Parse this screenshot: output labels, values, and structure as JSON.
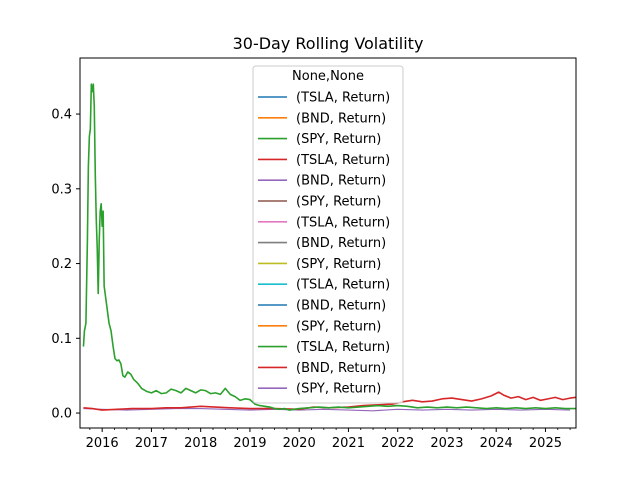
{
  "chart_data": {
    "type": "line",
    "title": "30-Day Rolling Volatility",
    "xlabel": "",
    "ylabel": "",
    "xlim": [
      2015.55,
      2025.62
    ],
    "ylim": [
      -0.02,
      0.475
    ],
    "xticks": [
      2016,
      2017,
      2018,
      2019,
      2020,
      2021,
      2022,
      2023,
      2024,
      2025
    ],
    "yticks": [
      0.0,
      0.1,
      0.2,
      0.3,
      0.4
    ],
    "ytick_labels": [
      "0.0",
      "0.1",
      "0.2",
      "0.3",
      "0.4"
    ],
    "grid": false,
    "legend": {
      "title": "None,None",
      "placement": "upper center",
      "entries": [
        {
          "label": "(TSLA, Return)",
          "color": "#1f77b4"
        },
        {
          "label": "(BND, Return)",
          "color": "#ff7f0e"
        },
        {
          "label": "(SPY, Return)",
          "color": "#2ca02c"
        },
        {
          "label": "(TSLA, Return)",
          "color": "#d62728"
        },
        {
          "label": "(BND, Return)",
          "color": "#9467bd"
        },
        {
          "label": "(SPY, Return)",
          "color": "#8c564b"
        },
        {
          "label": "(TSLA, Return)",
          "color": "#e377c2"
        },
        {
          "label": "(BND, Return)",
          "color": "#7f7f7f"
        },
        {
          "label": "(SPY, Return)",
          "color": "#bcbd22"
        },
        {
          "label": "(TSLA, Return)",
          "color": "#17becf"
        },
        {
          "label": "(BND, Return)",
          "color": "#1f77b4"
        },
        {
          "label": "(SPY, Return)",
          "color": "#ff7f0e"
        },
        {
          "label": "(TSLA, Return)",
          "color": "#2ca02c"
        },
        {
          "label": "(BND, Return)",
          "color": "#d62728"
        },
        {
          "label": "(SPY, Return)",
          "color": "#9467bd"
        }
      ]
    },
    "series": [
      {
        "color": "#9467bd",
        "width": 1.2,
        "points": [
          [
            2015.62,
            0.006
          ],
          [
            2016.0,
            0.005
          ],
          [
            2016.5,
            0.004
          ],
          [
            2017.0,
            0.005
          ],
          [
            2017.5,
            0.006
          ],
          [
            2018.0,
            0.006
          ],
          [
            2018.5,
            0.005
          ],
          [
            2019.0,
            0.004
          ],
          [
            2019.5,
            0.005
          ],
          [
            2020.0,
            0.004
          ],
          [
            2020.5,
            0.005
          ],
          [
            2021.0,
            0.004
          ],
          [
            2021.5,
            0.003
          ],
          [
            2022.0,
            0.005
          ],
          [
            2022.5,
            0.004
          ],
          [
            2023.0,
            0.005
          ],
          [
            2023.5,
            0.004
          ],
          [
            2024.0,
            0.005
          ],
          [
            2024.5,
            0.004
          ],
          [
            2025.0,
            0.005
          ],
          [
            2025.5,
            0.004
          ]
        ]
      },
      {
        "color": "#d62728",
        "width": 1.6,
        "points": [
          [
            2015.62,
            0.007
          ],
          [
            2015.8,
            0.006
          ],
          [
            2016.0,
            0.004
          ],
          [
            2016.3,
            0.005
          ],
          [
            2016.6,
            0.006
          ],
          [
            2017.0,
            0.006
          ],
          [
            2017.3,
            0.007
          ],
          [
            2017.6,
            0.007
          ],
          [
            2018.0,
            0.009
          ],
          [
            2018.3,
            0.008
          ],
          [
            2018.6,
            0.007
          ],
          [
            2019.0,
            0.006
          ],
          [
            2019.5,
            0.006
          ],
          [
            2020.0,
            0.005
          ],
          [
            2020.3,
            0.008
          ],
          [
            2020.6,
            0.007
          ],
          [
            2021.0,
            0.008
          ],
          [
            2021.3,
            0.01
          ],
          [
            2021.6,
            0.011
          ],
          [
            2021.9,
            0.012
          ],
          [
            2022.1,
            0.015
          ],
          [
            2022.3,
            0.017
          ],
          [
            2022.5,
            0.015
          ],
          [
            2022.7,
            0.016
          ],
          [
            2022.9,
            0.019
          ],
          [
            2023.1,
            0.02
          ],
          [
            2023.3,
            0.018
          ],
          [
            2023.5,
            0.016
          ],
          [
            2023.7,
            0.019
          ],
          [
            2023.9,
            0.023
          ],
          [
            2024.05,
            0.028
          ],
          [
            2024.15,
            0.024
          ],
          [
            2024.3,
            0.02
          ],
          [
            2024.45,
            0.022
          ],
          [
            2024.6,
            0.018
          ],
          [
            2024.75,
            0.021
          ],
          [
            2024.9,
            0.017
          ],
          [
            2025.05,
            0.019
          ],
          [
            2025.2,
            0.021
          ],
          [
            2025.35,
            0.018
          ],
          [
            2025.5,
            0.02
          ],
          [
            2025.62,
            0.021
          ]
        ]
      },
      {
        "color": "#2ca02c",
        "width": 1.6,
        "points": [
          [
            2015.62,
            0.089
          ],
          [
            2015.64,
            0.11
          ],
          [
            2015.67,
            0.12
          ],
          [
            2015.7,
            0.23
          ],
          [
            2015.72,
            0.33
          ],
          [
            2015.74,
            0.37
          ],
          [
            2015.76,
            0.38
          ],
          [
            2015.78,
            0.44
          ],
          [
            2015.8,
            0.43
          ],
          [
            2015.82,
            0.44
          ],
          [
            2015.84,
            0.41
          ],
          [
            2015.86,
            0.32
          ],
          [
            2015.88,
            0.26
          ],
          [
            2015.9,
            0.22
          ],
          [
            2015.92,
            0.16
          ],
          [
            2015.94,
            0.23
          ],
          [
            2015.96,
            0.27
          ],
          [
            2015.98,
            0.28
          ],
          [
            2016.0,
            0.25
          ],
          [
            2016.02,
            0.27
          ],
          [
            2016.04,
            0.17
          ],
          [
            2016.06,
            0.16
          ],
          [
            2016.1,
            0.14
          ],
          [
            2016.14,
            0.12
          ],
          [
            2016.18,
            0.11
          ],
          [
            2016.22,
            0.09
          ],
          [
            2016.26,
            0.073
          ],
          [
            2016.3,
            0.07
          ],
          [
            2016.34,
            0.071
          ],
          [
            2016.38,
            0.066
          ],
          [
            2016.42,
            0.05
          ],
          [
            2016.46,
            0.048
          ],
          [
            2016.52,
            0.055
          ],
          [
            2016.58,
            0.052
          ],
          [
            2016.64,
            0.045
          ],
          [
            2016.72,
            0.04
          ],
          [
            2016.8,
            0.033
          ],
          [
            2016.9,
            0.029
          ],
          [
            2017.0,
            0.027
          ],
          [
            2017.1,
            0.03
          ],
          [
            2017.2,
            0.026
          ],
          [
            2017.3,
            0.027
          ],
          [
            2017.4,
            0.032
          ],
          [
            2017.5,
            0.03
          ],
          [
            2017.6,
            0.027
          ],
          [
            2017.7,
            0.033
          ],
          [
            2017.8,
            0.03
          ],
          [
            2017.9,
            0.027
          ],
          [
            2018.0,
            0.031
          ],
          [
            2018.1,
            0.03
          ],
          [
            2018.2,
            0.026
          ],
          [
            2018.3,
            0.027
          ],
          [
            2018.4,
            0.025
          ],
          [
            2018.5,
            0.033
          ],
          [
            2018.6,
            0.025
          ],
          [
            2018.7,
            0.022
          ],
          [
            2018.8,
            0.017
          ],
          [
            2018.9,
            0.019
          ],
          [
            2019.0,
            0.018
          ],
          [
            2019.1,
            0.012
          ],
          [
            2019.2,
            0.01
          ],
          [
            2019.3,
            0.009
          ],
          [
            2019.4,
            0.008
          ],
          [
            2019.5,
            0.006
          ],
          [
            2019.6,
            0.005
          ],
          [
            2019.7,
            0.006
          ],
          [
            2019.8,
            0.004
          ],
          [
            2019.9,
            0.005
          ],
          [
            2020.0,
            0.006
          ],
          [
            2020.2,
            0.007
          ],
          [
            2020.4,
            0.008
          ],
          [
            2020.6,
            0.007
          ],
          [
            2020.8,
            0.008
          ],
          [
            2021.0,
            0.007
          ],
          [
            2021.2,
            0.008
          ],
          [
            2021.4,
            0.009
          ],
          [
            2021.6,
            0.01
          ],
          [
            2021.8,
            0.009
          ],
          [
            2022.0,
            0.01
          ],
          [
            2022.2,
            0.009
          ],
          [
            2022.4,
            0.007
          ],
          [
            2022.6,
            0.008
          ],
          [
            2022.8,
            0.007
          ],
          [
            2023.0,
            0.008
          ],
          [
            2023.2,
            0.007
          ],
          [
            2023.4,
            0.008
          ],
          [
            2023.6,
            0.007
          ],
          [
            2023.8,
            0.006
          ],
          [
            2024.0,
            0.007
          ],
          [
            2024.2,
            0.006
          ],
          [
            2024.4,
            0.007
          ],
          [
            2024.6,
            0.006
          ],
          [
            2024.8,
            0.007
          ],
          [
            2025.0,
            0.006
          ],
          [
            2025.2,
            0.007
          ],
          [
            2025.4,
            0.006
          ],
          [
            2025.62,
            0.006
          ]
        ]
      }
    ]
  }
}
